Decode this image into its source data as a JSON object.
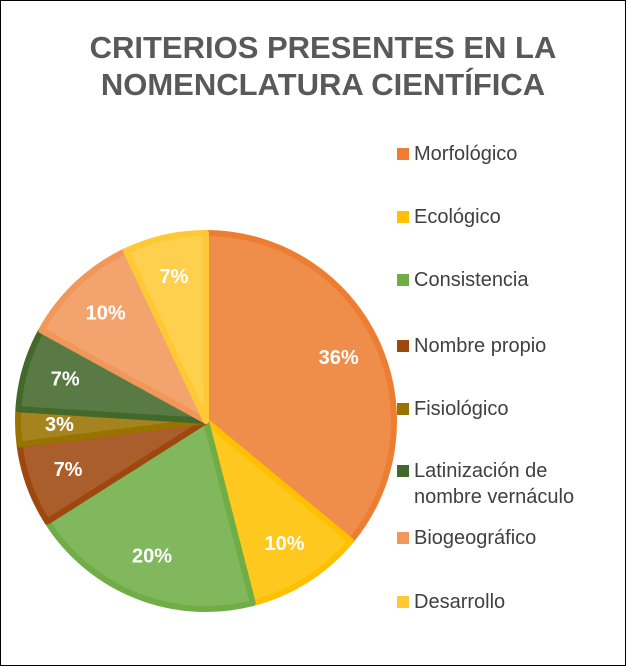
{
  "chart_data": {
    "type": "pie",
    "title": "CRITERIOS PRESENTES EN LA NOMENCLATURA CIENTÍFICA",
    "categories": [
      "Morfológico",
      "Ecológico",
      "Consistencia",
      "Nombre propio",
      "Fisiológico",
      "Latinización de nombre vernáculo",
      "Biogeográfico",
      "Desarrollo"
    ],
    "values": [
      36,
      10,
      20,
      7,
      3,
      7,
      10,
      7
    ],
    "value_labels": [
      "36%",
      "10%",
      "20%",
      "7%",
      "3%",
      "7%",
      "10%",
      "7%"
    ],
    "colors": [
      "#ED7D31",
      "#FFC000",
      "#70AD47",
      "#9E480E",
      "#997300",
      "#43682B",
      "#F1975A",
      "#FFC935"
    ],
    "legend": "right"
  }
}
